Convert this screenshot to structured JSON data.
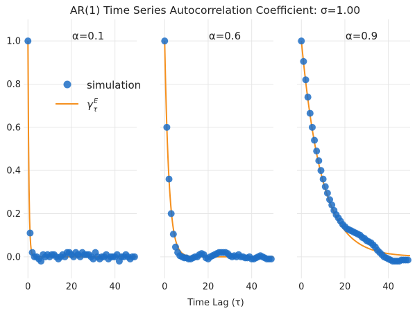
{
  "chart_data": {
    "type": "scatter",
    "title": "AR(1) Time Series Autocorrelation Coefficient: σ=1.00",
    "xlabel": "Time Lag (τ)",
    "ylabel": "",
    "xlim": [
      -2,
      50
    ],
    "ylim": [
      -0.1,
      1.1
    ],
    "xticks": [
      0,
      20,
      40
    ],
    "yticks": [
      0.0,
      0.2,
      0.4,
      0.6,
      0.8,
      1.0
    ],
    "xtick_labels": [
      "0",
      "20",
      "40"
    ],
    "ytick_labels": [
      "0.0",
      "0.2",
      "0.4",
      "0.6",
      "0.8",
      "1.0"
    ],
    "grid": true,
    "legend": {
      "placement": "left panel, upper-middle",
      "entries": [
        {
          "label": "simulation",
          "marker": "circle",
          "color": "#1f6fc5"
        },
        {
          "label_base": "γ",
          "label_sup": "E",
          "label_sub": "τ",
          "marker": "line",
          "color": "#f5901e"
        }
      ]
    },
    "colors": {
      "simulation": "#1f6fc5",
      "theory": "#f5901e"
    },
    "panels": [
      {
        "label": "α=0.1",
        "alpha": 0.1,
        "simulation": {
          "x": [
            0,
            1,
            2,
            3,
            4,
            5,
            6,
            7,
            8,
            9,
            10,
            11,
            12,
            13,
            14,
            15,
            16,
            17,
            18,
            19,
            20,
            21,
            22,
            23,
            24,
            25,
            26,
            27,
            28,
            29,
            30,
            31,
            32,
            33,
            34,
            35,
            36,
            37,
            38,
            39,
            40,
            41,
            42,
            43,
            44,
            45,
            46,
            47,
            48,
            49
          ],
          "y": [
            1.0,
            0.11,
            0.02,
            0.0,
            0.0,
            -0.01,
            -0.02,
            0.01,
            0.0,
            0.01,
            0.0,
            0.01,
            0.01,
            0.0,
            -0.01,
            0.0,
            0.01,
            0.0,
            0.02,
            0.02,
            0.01,
            0.0,
            0.02,
            0.01,
            0.0,
            0.02,
            0.01,
            0.01,
            0.01,
            0.0,
            -0.01,
            0.02,
            0.0,
            -0.01,
            0.0,
            0.0,
            0.01,
            -0.01,
            0.0,
            0.0,
            0.0,
            0.01,
            -0.02,
            0.0,
            0.0,
            0.01,
            0.0,
            -0.01,
            0.0,
            0.0
          ]
        }
      },
      {
        "label": "α=0.6",
        "alpha": 0.6,
        "simulation": {
          "x": [
            0,
            1,
            2,
            3,
            4,
            5,
            6,
            7,
            8,
            9,
            10,
            11,
            12,
            13,
            14,
            15,
            16,
            17,
            18,
            19,
            20,
            21,
            22,
            23,
            24,
            25,
            26,
            27,
            28,
            29,
            30,
            31,
            32,
            33,
            34,
            35,
            36,
            37,
            38,
            39,
            40,
            41,
            42,
            43,
            44,
            45,
            46,
            47,
            48,
            49
          ],
          "y": [
            1.0,
            0.6,
            0.36,
            0.2,
            0.105,
            0.045,
            0.02,
            0.005,
            0.0,
            -0.005,
            -0.005,
            -0.01,
            -0.01,
            -0.005,
            0.0,
            0.0,
            0.01,
            0.015,
            0.01,
            -0.005,
            -0.01,
            0.0,
            0.005,
            0.01,
            0.015,
            0.02,
            0.02,
            0.02,
            0.02,
            0.015,
            0.005,
            0.0,
            0.005,
            0.0,
            0.01,
            0.0,
            0.0,
            -0.005,
            -0.005,
            0.0,
            -0.01,
            -0.01,
            -0.005,
            0.0,
            0.005,
            0.0,
            -0.005,
            -0.01,
            -0.01,
            -0.01
          ]
        }
      },
      {
        "label": "α=0.9",
        "alpha": 0.9,
        "simulation": {
          "x": [
            0,
            1,
            2,
            3,
            4,
            5,
            6,
            7,
            8,
            9,
            10,
            11,
            12,
            13,
            14,
            15,
            16,
            17,
            18,
            19,
            20,
            21,
            22,
            23,
            24,
            25,
            26,
            27,
            28,
            29,
            30,
            31,
            32,
            33,
            34,
            35,
            36,
            37,
            38,
            39,
            40,
            41,
            42,
            43,
            44,
            45,
            46,
            47,
            48,
            49
          ],
          "y": [
            1.0,
            0.905,
            0.82,
            0.74,
            0.665,
            0.6,
            0.54,
            0.49,
            0.445,
            0.4,
            0.36,
            0.325,
            0.295,
            0.265,
            0.24,
            0.215,
            0.195,
            0.18,
            0.165,
            0.15,
            0.14,
            0.13,
            0.125,
            0.12,
            0.115,
            0.11,
            0.105,
            0.1,
            0.09,
            0.085,
            0.075,
            0.07,
            0.065,
            0.055,
            0.045,
            0.03,
            0.02,
            0.01,
            0.0,
            -0.005,
            -0.01,
            -0.015,
            -0.02,
            -0.02,
            -0.02,
            -0.02,
            -0.015,
            -0.015,
            -0.015,
            -0.015
          ]
        }
      }
    ]
  }
}
